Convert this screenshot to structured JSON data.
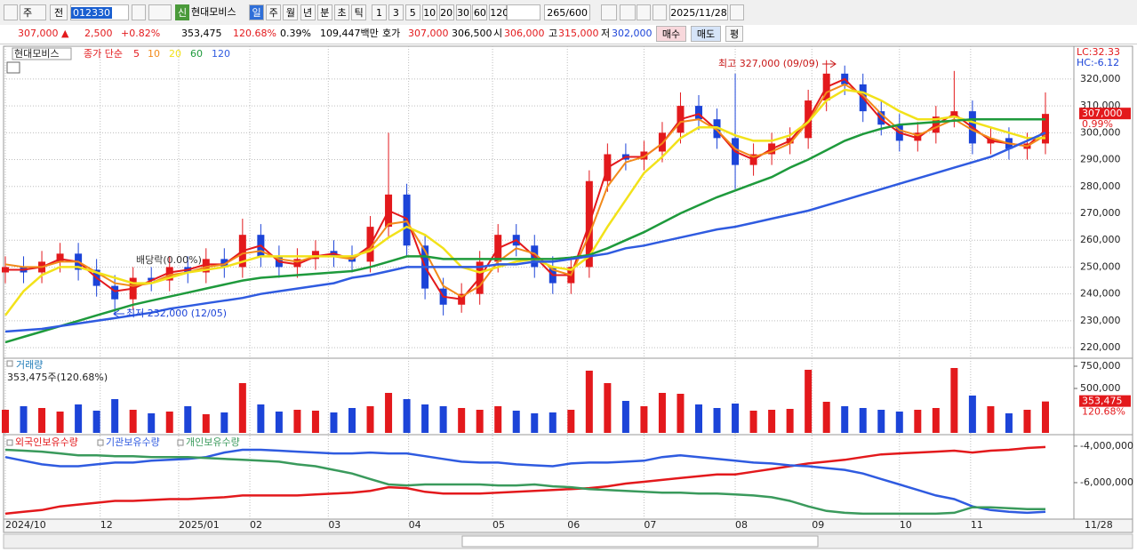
{
  "toolbar": {
    "period_type": "주",
    "prev": "전",
    "code": "012330",
    "badge": "신",
    "name": "현대모비스",
    "intervals": [
      "일",
      "주",
      "월",
      "년",
      "분",
      "초",
      "틱"
    ],
    "counts": [
      "1",
      "3",
      "5",
      "10",
      "20",
      "30",
      "60",
      "120"
    ],
    "view_count": "265",
    "view_max": "/600",
    "date": "2025/11/28"
  },
  "quote": {
    "price": "307,000 ▲",
    "change": "2,500",
    "change_rate": "+0.82%",
    "volume": "353,475",
    "volume_rate": "120.68%",
    "turnover": "0.39%",
    "amount": "109,447백만",
    "ask_label": "호가",
    "ask": "307,000",
    "bid": "306,500",
    "open_label": "시",
    "open": "306,000",
    "high_label": "고",
    "high": "315,000",
    "low_label": "저",
    "low": "302,000",
    "buy": "매수",
    "sell": "매도",
    "avg": "평"
  },
  "chart_data": [
    {
      "type": "candlestick",
      "title": "현대모비스",
      "subtitle": "종가 단순",
      "up_color": "#e3191c",
      "down_color": "#1c44d8",
      "xlim": [
        0,
        57
      ],
      "open": [
        248000,
        250000,
        248000,
        252000,
        255000,
        249000,
        243000,
        238000,
        246000,
        245000,
        250000,
        248000,
        253000,
        250000,
        262000,
        254000,
        250000,
        253000,
        256000,
        254000,
        252000,
        265000,
        277000,
        258000,
        242000,
        236000,
        240000,
        252000,
        262000,
        258000,
        250000,
        244000,
        250000,
        282000,
        292000,
        290000,
        293000,
        300000,
        310000,
        305000,
        298000,
        288000,
        292000,
        296000,
        298000,
        312000,
        322000,
        318000,
        308000,
        303000,
        297000,
        300000,
        306000,
        308000,
        296000,
        298000,
        294000,
        296000
      ],
      "high": [
        254000,
        254000,
        256000,
        259000,
        259000,
        253000,
        247000,
        250000,
        250000,
        254000,
        254000,
        257000,
        257000,
        268000,
        266000,
        258000,
        257000,
        260000,
        260000,
        258000,
        269000,
        300000,
        281000,
        262000,
        246000,
        244000,
        256000,
        266000,
        266000,
        262000,
        254000,
        254000,
        286000,
        296000,
        296000,
        297000,
        304000,
        315000,
        314000,
        309000,
        322000,
        296000,
        300000,
        302000,
        316000,
        327000,
        325000,
        322000,
        312000,
        307000,
        304000,
        310000,
        323000,
        312000,
        302000,
        302000,
        300000,
        315000
      ],
      "low": [
        244000,
        244000,
        244000,
        248000,
        245000,
        239000,
        232000,
        234000,
        241000,
        241000,
        244000,
        244000,
        246000,
        246000,
        250000,
        246000,
        246000,
        249000,
        250000,
        248000,
        248000,
        261000,
        254000,
        238000,
        232000,
        233000,
        236000,
        248000,
        254000,
        246000,
        240000,
        240000,
        246000,
        278000,
        286000,
        286000,
        289000,
        296000,
        301000,
        294000,
        279000,
        284000,
        288000,
        292000,
        294000,
        308000,
        314000,
        304000,
        299000,
        293000,
        293000,
        296000,
        302000,
        292000,
        292000,
        290000,
        290000,
        292000
      ],
      "close": [
        250000,
        248000,
        252000,
        255000,
        249000,
        243000,
        238000,
        246000,
        245000,
        250000,
        248000,
        253000,
        250000,
        262000,
        254000,
        250000,
        253000,
        256000,
        254000,
        252000,
        265000,
        277000,
        258000,
        242000,
        236000,
        240000,
        252000,
        262000,
        258000,
        250000,
        244000,
        250000,
        282000,
        292000,
        290000,
        293000,
        300000,
        310000,
        305000,
        298000,
        288000,
        292000,
        296000,
        298000,
        312000,
        322000,
        318000,
        308000,
        303000,
        297000,
        300000,
        306000,
        308000,
        296000,
        298000,
        294000,
        296000,
        307000
      ],
      "series": [
        {
          "name": "5",
          "color": "#e3191c",
          "values": [
            249000,
            249000,
            250000,
            253000,
            252000,
            246000,
            241000,
            242000,
            245000,
            248000,
            249000,
            251000,
            251000,
            256000,
            258000,
            252000,
            251000,
            254000,
            255000,
            253000,
            258000,
            271000,
            268000,
            250000,
            239000,
            238000,
            246000,
            257000,
            260000,
            254000,
            247000,
            247000,
            266000,
            287000,
            291000,
            291000,
            296000,
            305000,
            307000,
            301000,
            293000,
            290000,
            294000,
            297000,
            305000,
            317000,
            320000,
            313000,
            305000,
            300000,
            298000,
            303000,
            307000,
            302000,
            297000,
            296000,
            295000,
            301000
          ]
        },
        {
          "name": "10",
          "color": "#f28a1a",
          "values": [
            251000,
            250000,
            250000,
            252000,
            252000,
            248000,
            244000,
            243000,
            244000,
            247000,
            248000,
            250000,
            251000,
            255000,
            256000,
            253000,
            252000,
            254000,
            254000,
            253000,
            257000,
            266000,
            267000,
            256000,
            243000,
            239000,
            243000,
            252000,
            257000,
            255000,
            249000,
            247000,
            262000,
            280000,
            289000,
            291000,
            296000,
            304000,
            305000,
            301000,
            294000,
            291000,
            293000,
            296000,
            304000,
            315000,
            318000,
            314000,
            307000,
            301000,
            299000,
            302000,
            305000,
            301000,
            298000,
            296000,
            295000,
            299000
          ]
        },
        {
          "name": "20",
          "color": "#f2e21a",
          "values": [
            232000,
            241000,
            247000,
            250000,
            250000,
            248000,
            246000,
            244000,
            244000,
            246000,
            248000,
            249000,
            250000,
            252000,
            254000,
            254000,
            254000,
            254000,
            254000,
            254000,
            256000,
            261000,
            265000,
            262000,
            257000,
            250000,
            248000,
            250000,
            252000,
            253000,
            250000,
            249000,
            254000,
            265000,
            275000,
            285000,
            291000,
            298000,
            302000,
            302000,
            299000,
            297000,
            297000,
            299000,
            304000,
            312000,
            316000,
            315000,
            312000,
            308000,
            305000,
            305000,
            306000,
            304000,
            302000,
            300000,
            298000,
            298000
          ]
        },
        {
          "name": "60",
          "color": "#1e9a3c",
          "values": [
            222000,
            224000,
            226000,
            228000,
            230000,
            232000,
            234000,
            236000,
            237500,
            239000,
            240500,
            242000,
            243500,
            245000,
            246000,
            246500,
            247000,
            247500,
            248000,
            248500,
            250000,
            252000,
            254000,
            254000,
            253000,
            253000,
            253000,
            253000,
            253000,
            253000,
            253000,
            253500,
            254500,
            257000,
            260000,
            263000,
            266500,
            270000,
            273000,
            276000,
            278500,
            281000,
            283500,
            287000,
            290000,
            293500,
            297000,
            299500,
            301500,
            303000,
            303500,
            304000,
            304500,
            305000,
            305000,
            305000,
            305000,
            305000
          ]
        },
        {
          "name": "120",
          "color": "#2f5be0",
          "values": [
            226000,
            226500,
            227000,
            228000,
            229000,
            230000,
            231000,
            232000,
            233000,
            234500,
            235500,
            236500,
            237500,
            238500,
            240000,
            241000,
            242000,
            243000,
            244000,
            246000,
            247000,
            248500,
            250000,
            250000,
            250000,
            250000,
            250000,
            251000,
            251000,
            252000,
            252000,
            253000,
            254000,
            255000,
            257000,
            258000,
            259500,
            261000,
            262500,
            264000,
            265000,
            266500,
            268000,
            269500,
            271000,
            273000,
            275000,
            277000,
            279000,
            281000,
            283000,
            285000,
            287000,
            289000,
            291000,
            294000,
            297000,
            300000
          ]
        }
      ],
      "ylim": [
        216400,
        332200
      ],
      "yticks": [
        {
          "value": 220000,
          "label": "220,000"
        },
        {
          "value": 230000,
          "label": "230,000"
        },
        {
          "value": 240000,
          "label": "240,000"
        },
        {
          "value": 250000,
          "label": "250,000"
        },
        {
          "value": 260000,
          "label": "260,000"
        },
        {
          "value": 270000,
          "label": "270,000"
        },
        {
          "value": 280000,
          "label": "280,000"
        },
        {
          "value": 290000,
          "label": "290,000"
        },
        {
          "value": 300000,
          "label": "300,000"
        },
        {
          "value": 310000,
          "label": "310,000"
        },
        {
          "value": 320000,
          "label": "320,000"
        }
      ],
      "grid": true,
      "annotations": [
        "최고 327,000 (09/09)",
        "최저 232,000 (12/05)",
        "배당락(0.00%)"
      ],
      "lc": "LC:32.33",
      "hc": "HC:-6.12",
      "last_label": "307,000",
      "last_rate": "0.99%"
    },
    {
      "type": "bar",
      "title": "거래량",
      "subtitle": "353,475주(120.68%)",
      "xlim": [
        0,
        57
      ],
      "values": [
        260000,
        300000,
        280000,
        240000,
        320000,
        250000,
        380000,
        260000,
        220000,
        240000,
        300000,
        210000,
        230000,
        560000,
        320000,
        240000,
        260000,
        250000,
        230000,
        280000,
        300000,
        450000,
        380000,
        320000,
        300000,
        280000,
        260000,
        300000,
        250000,
        220000,
        230000,
        260000,
        700000,
        560000,
        360000,
        300000,
        450000,
        440000,
        320000,
        280000,
        330000,
        250000,
        260000,
        270000,
        710000,
        350000,
        300000,
        280000,
        260000,
        240000,
        260000,
        280000,
        730000,
        420000,
        300000,
        220000,
        260000,
        353475
      ],
      "ylim": [
        0,
        830000
      ],
      "yticks": [
        {
          "value": 500000,
          "label": "500,000"
        },
        {
          "value": 750000,
          "label": "750,000"
        }
      ],
      "last_label": "353,475",
      "last_rate": "120.68%"
    },
    {
      "type": "line",
      "xlim": [
        0,
        57
      ],
      "series": [
        {
          "name": "외국인보유수량",
          "color": "#e3191c",
          "values": [
            -7700000,
            -7600000,
            -7500000,
            -7300000,
            -7200000,
            -7100000,
            -7000000,
            -7000000,
            -6950000,
            -6900000,
            -6900000,
            -6850000,
            -6800000,
            -6700000,
            -6700000,
            -6700000,
            -6700000,
            -6650000,
            -6600000,
            -6550000,
            -6450000,
            -6250000,
            -6300000,
            -6500000,
            -6600000,
            -6600000,
            -6600000,
            -6550000,
            -6500000,
            -6450000,
            -6400000,
            -6350000,
            -6300000,
            -6200000,
            -6050000,
            -5950000,
            -5850000,
            -5750000,
            -5650000,
            -5550000,
            -5550000,
            -5400000,
            -5250000,
            -5100000,
            -4950000,
            -4850000,
            -4750000,
            -4600000,
            -4450000,
            -4400000,
            -4350000,
            -4300000,
            -4250000,
            -4350000,
            -4250000,
            -4200000,
            -4100000,
            -4050000
          ]
        },
        {
          "name": "기관보유수량",
          "color": "#2f5be0",
          "values": [
            -4600000,
            -4800000,
            -5000000,
            -5100000,
            -5100000,
            -5000000,
            -4900000,
            -4900000,
            -4800000,
            -4750000,
            -4700000,
            -4600000,
            -4350000,
            -4200000,
            -4200000,
            -4250000,
            -4300000,
            -4350000,
            -4400000,
            -4400000,
            -4350000,
            -4400000,
            -4400000,
            -4550000,
            -4700000,
            -4850000,
            -4900000,
            -4900000,
            -5000000,
            -5050000,
            -5100000,
            -4950000,
            -4900000,
            -4900000,
            -4850000,
            -4800000,
            -4600000,
            -4500000,
            -4600000,
            -4700000,
            -4800000,
            -4900000,
            -4950000,
            -5050000,
            -5100000,
            -5200000,
            -5300000,
            -5500000,
            -5800000,
            -6100000,
            -6400000,
            -6700000,
            -6900000,
            -7300000,
            -7500000,
            -7600000,
            -7650000,
            -7600000
          ]
        },
        {
          "name": "개인보유수량",
          "color": "#3a9a5c",
          "values": [
            -4200000,
            -4250000,
            -4300000,
            -4400000,
            -4500000,
            -4500000,
            -4550000,
            -4550000,
            -4600000,
            -4600000,
            -4600000,
            -4650000,
            -4700000,
            -4750000,
            -4800000,
            -4850000,
            -5000000,
            -5100000,
            -5300000,
            -5500000,
            -5800000,
            -6100000,
            -6150000,
            -6100000,
            -6100000,
            -6100000,
            -6100000,
            -6150000,
            -6150000,
            -6100000,
            -6200000,
            -6250000,
            -6350000,
            -6400000,
            -6450000,
            -6500000,
            -6550000,
            -6550000,
            -6600000,
            -6600000,
            -6650000,
            -6700000,
            -6800000,
            -7000000,
            -7300000,
            -7550000,
            -7650000,
            -7700000,
            -7700000,
            -7700000,
            -7700000,
            -7700000,
            -7650000,
            -7350000,
            -7350000,
            -7400000,
            -7450000,
            -7450000
          ]
        }
      ],
      "ylim": [
        -7900000,
        -3420000
      ],
      "yticks": [
        {
          "value": -6000000,
          "label": "-6,000,000"
        },
        {
          "value": -4000000,
          "label": "-4,000,000"
        }
      ],
      "xticks": [
        {
          "value": 0,
          "label": "2024/10"
        },
        {
          "value": 5.2,
          "label": "12"
        },
        {
          "value": 9.5,
          "label": "2025/01"
        },
        {
          "value": 13.4,
          "label": "02"
        },
        {
          "value": 17.7,
          "label": "03"
        },
        {
          "value": 22.1,
          "label": "04"
        },
        {
          "value": 26.7,
          "label": "05"
        },
        {
          "value": 30.8,
          "label": "06"
        },
        {
          "value": 35,
          "label": "07"
        },
        {
          "value": 40,
          "label": "08"
        },
        {
          "value": 44.2,
          "label": "09"
        },
        {
          "value": 49,
          "label": "10"
        },
        {
          "value": 52.9,
          "label": "11"
        }
      ],
      "end_label": "11/28"
    }
  ]
}
